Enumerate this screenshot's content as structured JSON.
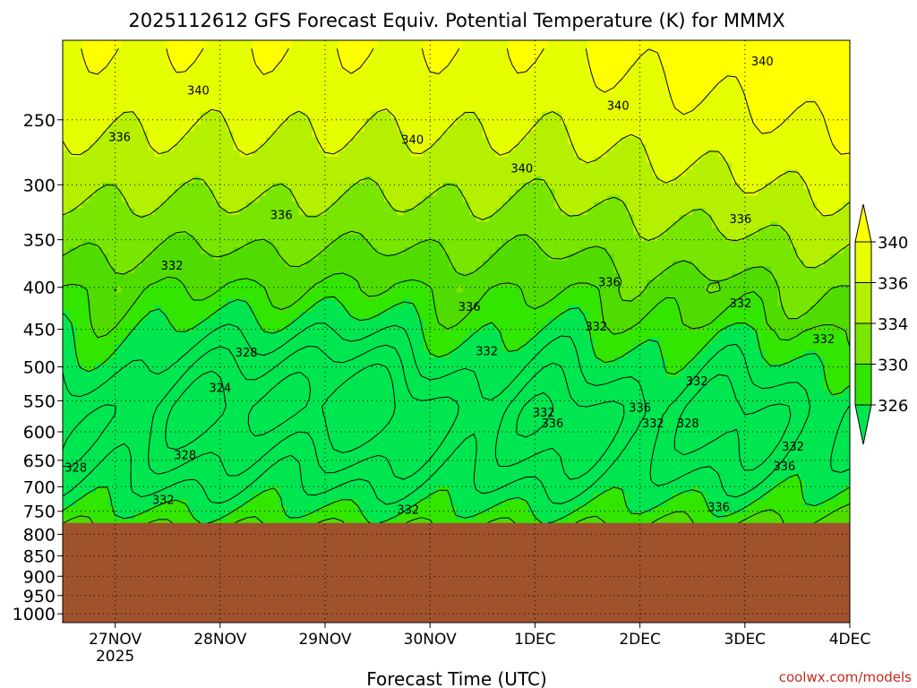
{
  "chart_data": {
    "type": "heatmap",
    "title": "2025112612 GFS Forecast Equiv. Potential Temperature (K) for MMMX",
    "xlabel": "Forecast Time (UTC)",
    "ylabel": "",
    "credit": "coolwx.com/models",
    "x_ticks": [
      {
        "label": "27NOV",
        "sub": "2025",
        "hours_from_start": 12
      },
      {
        "label": "28NOV",
        "sub": "",
        "hours_from_start": 36
      },
      {
        "label": "29NOV",
        "sub": "",
        "hours_from_start": 60
      },
      {
        "label": "30NOV",
        "sub": "",
        "hours_from_start": 84
      },
      {
        "label": "1DEC",
        "sub": "",
        "hours_from_start": 108
      },
      {
        "label": "2DEC",
        "sub": "",
        "hours_from_start": 132
      },
      {
        "label": "3DEC",
        "sub": "",
        "hours_from_start": 156
      },
      {
        "label": "4DEC",
        "sub": "",
        "hours_from_start": 180
      }
    ],
    "x_range_hours": [
      0,
      180
    ],
    "y_ticks": [
      {
        "label": "250",
        "value": 250
      },
      {
        "label": "300",
        "value": 300
      },
      {
        "label": "350",
        "value": 350
      },
      {
        "label": "400",
        "value": 400
      },
      {
        "label": "450",
        "value": 450
      },
      {
        "label": "500",
        "value": 500
      },
      {
        "label": "550",
        "value": 550
      },
      {
        "label": "600",
        "value": 600
      },
      {
        "label": "650",
        "value": 650
      },
      {
        "label": "700",
        "value": 700
      },
      {
        "label": "750",
        "value": 750
      },
      {
        "label": "800",
        "value": 800
      },
      {
        "label": "850",
        "value": 850
      },
      {
        "label": "900",
        "value": 900
      },
      {
        "label": "950",
        "value": 950
      },
      {
        "label": "1000",
        "value": 1000
      }
    ],
    "y_range_hpa": [
      200,
      1025
    ],
    "y_axis_type": "log-pressure",
    "surface_pressure_hpa": 775,
    "colorbar": {
      "labels": [
        {
          "label": "340",
          "value": 340
        },
        {
          "label": "336",
          "value": 336
        },
        {
          "label": "334",
          "value": 334
        },
        {
          "label": "330",
          "value": 330
        },
        {
          "label": "326",
          "value": 326
        }
      ],
      "band_colors": [
        "#ffff00",
        "#e6ff00",
        "#b4f000",
        "#78e600",
        "#32e600",
        "#00e650"
      ],
      "band_edges": [
        340,
        338,
        336,
        334,
        332,
        330,
        326
      ]
    },
    "band_colors_by_threshold": [
      {
        "min": 340,
        "color": "#ffff00"
      },
      {
        "min": 338,
        "color": "#e6ff00"
      },
      {
        "min": 336,
        "color": "#b4f000"
      },
      {
        "min": 334,
        "color": "#78e600"
      },
      {
        "min": 332,
        "color": "#50dc00"
      },
      {
        "min": 330,
        "color": "#32e600"
      },
      {
        "min": 326,
        "color": "#00e650"
      }
    ],
    "ground_color": "#a0522d",
    "contour_labels": [
      {
        "label": "340",
        "hour": 31,
        "hpa": 230
      },
      {
        "label": "340",
        "hour": 127,
        "hpa": 240
      },
      {
        "label": "340",
        "hour": 160,
        "hpa": 212
      },
      {
        "label": "340",
        "hour": 80,
        "hpa": 264
      },
      {
        "label": "340",
        "hour": 105,
        "hpa": 286
      },
      {
        "label": "336",
        "hour": 13,
        "hpa": 262
      },
      {
        "label": "336",
        "hour": 50,
        "hpa": 326
      },
      {
        "label": "336",
        "hour": 93,
        "hpa": 422
      },
      {
        "label": "336",
        "hour": 125,
        "hpa": 394
      },
      {
        "label": "336",
        "hour": 155,
        "hpa": 330
      },
      {
        "label": "336",
        "hour": 112,
        "hpa": 585
      },
      {
        "label": "336",
        "hour": 132,
        "hpa": 560
      },
      {
        "label": "336",
        "hour": 165,
        "hpa": 660
      },
      {
        "label": "336",
        "hour": 150,
        "hpa": 740
      },
      {
        "label": "332",
        "hour": 25,
        "hpa": 376
      },
      {
        "label": "332",
        "hour": 97,
        "hpa": 478
      },
      {
        "label": "332",
        "hour": 122,
        "hpa": 446
      },
      {
        "label": "332",
        "hour": 155,
        "hpa": 418
      },
      {
        "label": "332",
        "hour": 174,
        "hpa": 462
      },
      {
        "label": "332",
        "hour": 145,
        "hpa": 520
      },
      {
        "label": "332",
        "hour": 110,
        "hpa": 568
      },
      {
        "label": "332",
        "hour": 135,
        "hpa": 585
      },
      {
        "label": "332",
        "hour": 167,
        "hpa": 625
      },
      {
        "label": "332",
        "hour": 23,
        "hpa": 725
      },
      {
        "label": "332",
        "hour": 79,
        "hpa": 746
      },
      {
        "label": "328",
        "hour": 42,
        "hpa": 480
      },
      {
        "label": "328",
        "hour": 28,
        "hpa": 640
      },
      {
        "label": "328",
        "hour": 3,
        "hpa": 663
      },
      {
        "label": "328",
        "hour": 143,
        "hpa": 585
      },
      {
        "label": "324",
        "hour": 36,
        "hpa": 530
      }
    ]
  }
}
